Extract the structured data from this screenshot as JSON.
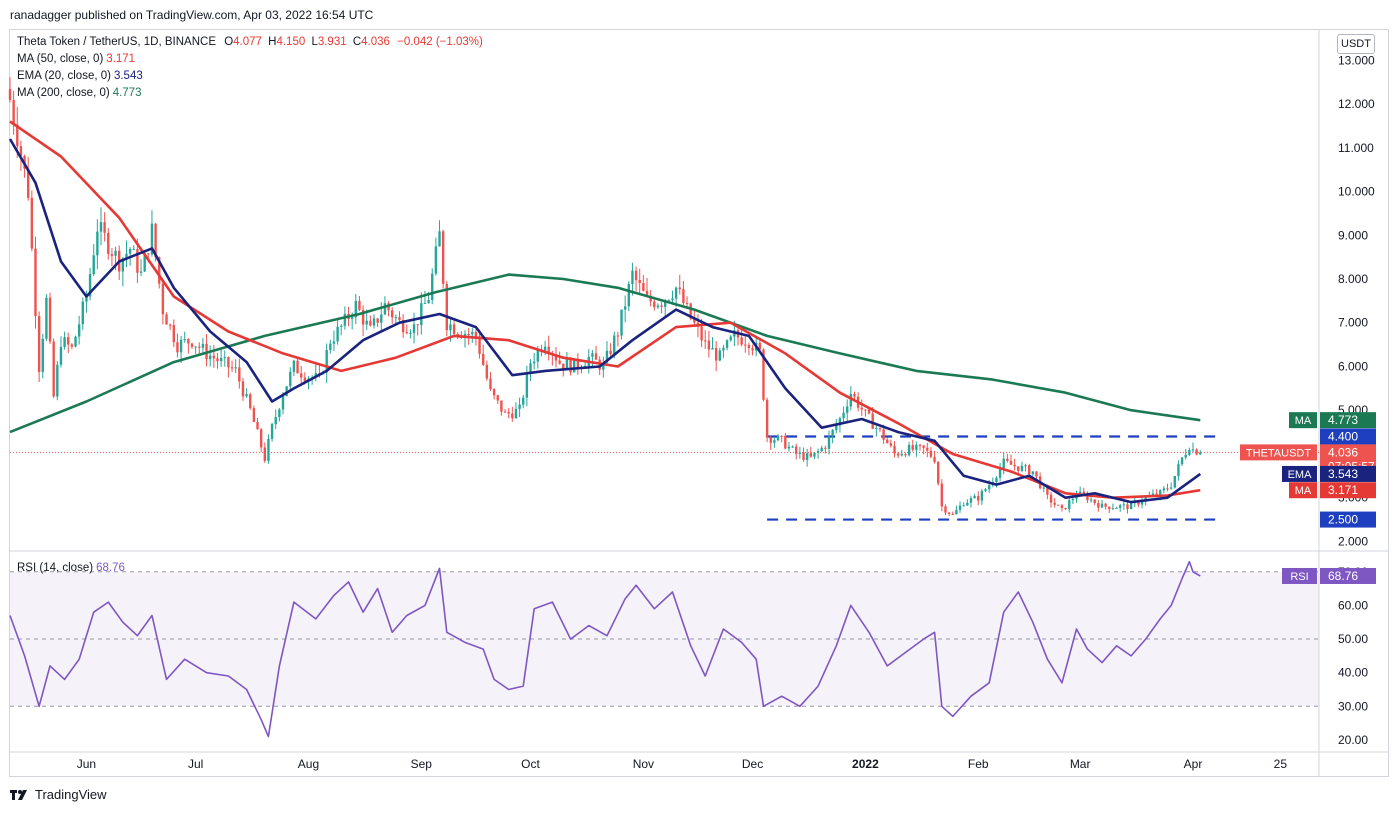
{
  "header": {
    "published": "ranadagger published on TradingView.com, Apr 03, 2022 16:54 UTC"
  },
  "legend": {
    "symbol_line": {
      "title": "Theta Token / TetherUS, 1D, BINANCE",
      "o_label": "O",
      "o": "4.077",
      "h_label": "H",
      "h": "4.150",
      "l_label": "L",
      "l": "3.931",
      "c_label": "C",
      "c": "4.036",
      "change": "−0.042 (−1.03%)"
    },
    "ma50": {
      "label": "MA (50, close, 0)",
      "value": "3.171",
      "color": "#e53935"
    },
    "ema20": {
      "label": "EMA (20, close, 0)",
      "value": "3.543",
      "color": "#1a237e"
    },
    "ma200": {
      "label": "MA (200, close, 0)",
      "value": "4.773",
      "color": "#1b7a54"
    },
    "rsi": {
      "label": "RSI (14, close)",
      "value": "68.76",
      "color": "#7e57c2"
    }
  },
  "unit": "USDT",
  "price_tags": {
    "ma200": {
      "name": "MA",
      "value": "4.773"
    },
    "resistance": {
      "value": "4.400"
    },
    "last": {
      "name": "THETAUSDT",
      "value": "4.036",
      "countdown": "07:05:57"
    },
    "ema20": {
      "name": "EMA",
      "value": "3.543"
    },
    "ma50": {
      "name": "MA",
      "value": "3.171"
    },
    "support": {
      "value": "2.500"
    },
    "rsi": {
      "name": "RSI",
      "value": "68.76"
    }
  },
  "footer": {
    "brand": "TradingView"
  },
  "chart_data": {
    "type": "candlestick",
    "symbol": "THETAUSDT",
    "x_ticks": [
      "Jun",
      "Jul",
      "Aug",
      "Sep",
      "Oct",
      "Nov",
      "Dec",
      "2022",
      "Feb",
      "Mar",
      "Apr",
      "25"
    ],
    "y_ticks": [
      "13.000",
      "12.000",
      "11.000",
      "10.000",
      "9.000",
      "8.000",
      "7.000",
      "6.000",
      "5.000",
      "4.000",
      "3.000",
      "2.000"
    ],
    "ylim": [
      1.85,
      13.35
    ],
    "rsi_ticks": [
      "70.00",
      "60.00",
      "50.00",
      "40.00",
      "30.00",
      "20.00"
    ],
    "rsi_lim": [
      17,
      75
    ],
    "horizontal_levels": [
      {
        "value": 4.4,
        "style": "dashed",
        "color": "#1e3fbf",
        "from": "2021-12-05",
        "to": "2022-04-08"
      },
      {
        "value": 2.5,
        "style": "dashed",
        "color": "#1e3fbf",
        "from": "2021-12-05",
        "to": "2022-04-08"
      }
    ],
    "anchors": {
      "close": [
        [
          "2021-05-11",
          12.1
        ],
        [
          "2021-05-13",
          11.3
        ],
        [
          "2021-05-16",
          10.0
        ],
        [
          "2021-05-19",
          6.0
        ],
        [
          "2021-05-21",
          7.5
        ],
        [
          "2021-05-23",
          5.3
        ],
        [
          "2021-05-25",
          6.6
        ],
        [
          "2021-05-28",
          6.4
        ],
        [
          "2021-06-01",
          7.6
        ],
        [
          "2021-06-04",
          9.2
        ],
        [
          "2021-06-07",
          8.8
        ],
        [
          "2021-06-10",
          8.4
        ],
        [
          "2021-06-13",
          8.7
        ],
        [
          "2021-06-16",
          8.1
        ],
        [
          "2021-06-19",
          9.1
        ],
        [
          "2021-06-22",
          7.3
        ],
        [
          "2021-06-26",
          6.5
        ],
        [
          "2021-06-30",
          6.6
        ],
        [
          "2021-07-04",
          6.3
        ],
        [
          "2021-07-08",
          6.1
        ],
        [
          "2021-07-12",
          5.9
        ],
        [
          "2021-07-16",
          5.0
        ],
        [
          "2021-07-20",
          3.9
        ],
        [
          "2021-07-22",
          4.6
        ],
        [
          "2021-07-25",
          5.4
        ],
        [
          "2021-07-28",
          6.0
        ],
        [
          "2021-07-31",
          5.8
        ],
        [
          "2021-08-04",
          5.7
        ],
        [
          "2021-08-07",
          6.6
        ],
        [
          "2021-08-10",
          6.9
        ],
        [
          "2021-08-14",
          7.4
        ],
        [
          "2021-08-18",
          6.8
        ],
        [
          "2021-08-22",
          7.4
        ],
        [
          "2021-08-26",
          7.0
        ],
        [
          "2021-08-30",
          6.9
        ],
        [
          "2021-09-03",
          7.6
        ],
        [
          "2021-09-06",
          9.0
        ],
        [
          "2021-09-08",
          7.0
        ],
        [
          "2021-09-12",
          6.8
        ],
        [
          "2021-09-16",
          6.7
        ],
        [
          "2021-09-20",
          5.4
        ],
        [
          "2021-09-24",
          4.9
        ],
        [
          "2021-09-28",
          5.0
        ],
        [
          "2021-10-01",
          6.1
        ],
        [
          "2021-10-05",
          6.6
        ],
        [
          "2021-10-09",
          6.1
        ],
        [
          "2021-10-13",
          6.0
        ],
        [
          "2021-10-17",
          6.2
        ],
        [
          "2021-10-21",
          6.0
        ],
        [
          "2021-10-25",
          6.8
        ],
        [
          "2021-10-29",
          8.1
        ],
        [
          "2021-11-02",
          7.5
        ],
        [
          "2021-11-06",
          7.5
        ],
        [
          "2021-11-10",
          7.8
        ],
        [
          "2021-11-14",
          7.1
        ],
        [
          "2021-11-18",
          6.5
        ],
        [
          "2021-11-22",
          6.2
        ],
        [
          "2021-11-26",
          6.7
        ],
        [
          "2021-11-30",
          6.6
        ],
        [
          "2021-12-03",
          6.3
        ],
        [
          "2021-12-05",
          4.4
        ],
        [
          "2021-12-09",
          4.3
        ],
        [
          "2021-12-13",
          4.0
        ],
        [
          "2021-12-17",
          3.9
        ],
        [
          "2021-12-21",
          4.2
        ],
        [
          "2021-12-25",
          4.8
        ],
        [
          "2021-12-28",
          5.4
        ],
        [
          "2022-01-01",
          4.9
        ],
        [
          "2022-01-05",
          4.5
        ],
        [
          "2022-01-09",
          4.0
        ],
        [
          "2022-01-13",
          4.1
        ],
        [
          "2022-01-17",
          4.1
        ],
        [
          "2022-01-20",
          3.9
        ],
        [
          "2022-01-22",
          2.8
        ],
        [
          "2022-01-25",
          2.6
        ],
        [
          "2022-01-28",
          2.9
        ],
        [
          "2022-02-01",
          3.0
        ],
        [
          "2022-02-04",
          3.3
        ],
        [
          "2022-02-08",
          3.8
        ],
        [
          "2022-02-12",
          3.7
        ],
        [
          "2022-02-16",
          3.6
        ],
        [
          "2022-02-20",
          3.0
        ],
        [
          "2022-02-24",
          2.7
        ],
        [
          "2022-02-28",
          3.1
        ],
        [
          "2022-03-03",
          3.0
        ],
        [
          "2022-03-07",
          2.8
        ],
        [
          "2022-03-11",
          2.8
        ],
        [
          "2022-03-15",
          2.8
        ],
        [
          "2022-03-19",
          3.0
        ],
        [
          "2022-03-23",
          3.1
        ],
        [
          "2022-03-26",
          3.3
        ],
        [
          "2022-03-29",
          3.9
        ],
        [
          "2022-03-31",
          4.2
        ],
        [
          "2022-04-01",
          4.1
        ],
        [
          "2022-04-02",
          4.077
        ],
        [
          "2022-04-03",
          4.036
        ]
      ],
      "ema20": [
        [
          "2021-05-11",
          11.2
        ],
        [
          "2021-05-18",
          10.2
        ],
        [
          "2021-05-25",
          8.4
        ],
        [
          "2021-06-01",
          7.6
        ],
        [
          "2021-06-10",
          8.4
        ],
        [
          "2021-06-19",
          8.7
        ],
        [
          "2021-06-25",
          7.8
        ],
        [
          "2021-07-05",
          6.8
        ],
        [
          "2021-07-15",
          6.1
        ],
        [
          "2021-07-22",
          5.2
        ],
        [
          "2021-07-28",
          5.5
        ],
        [
          "2021-08-06",
          5.9
        ],
        [
          "2021-08-16",
          6.6
        ],
        [
          "2021-08-26",
          7.0
        ],
        [
          "2021-09-06",
          7.2
        ],
        [
          "2021-09-16",
          6.9
        ],
        [
          "2021-09-26",
          5.8
        ],
        [
          "2021-10-05",
          5.9
        ],
        [
          "2021-10-20",
          6.0
        ],
        [
          "2021-10-29",
          6.6
        ],
        [
          "2021-11-10",
          7.3
        ],
        [
          "2021-11-20",
          6.9
        ],
        [
          "2021-11-30",
          6.7
        ],
        [
          "2021-12-10",
          5.5
        ],
        [
          "2021-12-20",
          4.6
        ],
        [
          "2021-12-31",
          4.8
        ],
        [
          "2022-01-10",
          4.5
        ],
        [
          "2022-01-20",
          4.3
        ],
        [
          "2022-01-28",
          3.5
        ],
        [
          "2022-02-06",
          3.3
        ],
        [
          "2022-02-15",
          3.5
        ],
        [
          "2022-02-25",
          3.0
        ],
        [
          "2022-03-05",
          3.1
        ],
        [
          "2022-03-15",
          2.9
        ],
        [
          "2022-03-25",
          3.0
        ],
        [
          "2022-04-03",
          3.543
        ]
      ],
      "ma50": [
        [
          "2021-05-11",
          11.6
        ],
        [
          "2021-05-25",
          10.8
        ],
        [
          "2021-06-10",
          9.4
        ],
        [
          "2021-06-25",
          7.6
        ],
        [
          "2021-07-10",
          6.8
        ],
        [
          "2021-07-25",
          6.3
        ],
        [
          "2021-08-10",
          5.9
        ],
        [
          "2021-08-25",
          6.2
        ],
        [
          "2021-09-10",
          6.7
        ],
        [
          "2021-09-25",
          6.6
        ],
        [
          "2021-10-10",
          6.2
        ],
        [
          "2021-10-25",
          6.0
        ],
        [
          "2021-11-10",
          6.9
        ],
        [
          "2021-11-25",
          7.0
        ],
        [
          "2021-12-10",
          6.3
        ],
        [
          "2021-12-25",
          5.4
        ],
        [
          "2022-01-10",
          4.7
        ],
        [
          "2022-01-25",
          4.0
        ],
        [
          "2022-02-10",
          3.6
        ],
        [
          "2022-02-25",
          3.1
        ],
        [
          "2022-03-10",
          3.0
        ],
        [
          "2022-03-25",
          3.05
        ],
        [
          "2022-04-03",
          3.171
        ]
      ],
      "ma200": [
        [
          "2021-05-11",
          4.5
        ],
        [
          "2021-06-01",
          5.2
        ],
        [
          "2021-06-25",
          6.1
        ],
        [
          "2021-07-20",
          6.7
        ],
        [
          "2021-08-15",
          7.2
        ],
        [
          "2021-09-05",
          7.7
        ],
        [
          "2021-09-25",
          8.1
        ],
        [
          "2021-10-10",
          8.0
        ],
        [
          "2021-10-25",
          7.8
        ],
        [
          "2021-11-15",
          7.3
        ],
        [
          "2021-12-05",
          6.7
        ],
        [
          "2021-12-25",
          6.3
        ],
        [
          "2022-01-15",
          5.9
        ],
        [
          "2022-02-05",
          5.7
        ],
        [
          "2022-02-25",
          5.4
        ],
        [
          "2022-03-15",
          5.0
        ],
        [
          "2022-04-03",
          4.773
        ]
      ],
      "rsi": [
        [
          "2021-05-11",
          57
        ],
        [
          "2021-05-15",
          45
        ],
        [
          "2021-05-19",
          30
        ],
        [
          "2021-05-22",
          42
        ],
        [
          "2021-05-26",
          38
        ],
        [
          "2021-05-30",
          44
        ],
        [
          "2021-06-03",
          58
        ],
        [
          "2021-06-07",
          61
        ],
        [
          "2021-06-11",
          55
        ],
        [
          "2021-06-15",
          51
        ],
        [
          "2021-06-19",
          57
        ],
        [
          "2021-06-23",
          38
        ],
        [
          "2021-06-28",
          44
        ],
        [
          "2021-07-04",
          40
        ],
        [
          "2021-07-10",
          39
        ],
        [
          "2021-07-15",
          35
        ],
        [
          "2021-07-19",
          26
        ],
        [
          "2021-07-21",
          21
        ],
        [
          "2021-07-24",
          42
        ],
        [
          "2021-07-28",
          61
        ],
        [
          "2021-08-03",
          56
        ],
        [
          "2021-08-08",
          63
        ],
        [
          "2021-08-12",
          67
        ],
        [
          "2021-08-16",
          58
        ],
        [
          "2021-08-20",
          65
        ],
        [
          "2021-08-24",
          52
        ],
        [
          "2021-08-28",
          57
        ],
        [
          "2021-09-02",
          60
        ],
        [
          "2021-09-06",
          71
        ],
        [
          "2021-09-08",
          52
        ],
        [
          "2021-09-13",
          49
        ],
        [
          "2021-09-18",
          47
        ],
        [
          "2021-09-21",
          38
        ],
        [
          "2021-09-25",
          35
        ],
        [
          "2021-09-29",
          36
        ],
        [
          "2021-10-02",
          59
        ],
        [
          "2021-10-07",
          61
        ],
        [
          "2021-10-12",
          50
        ],
        [
          "2021-10-17",
          54
        ],
        [
          "2021-10-22",
          51
        ],
        [
          "2021-10-27",
          62
        ],
        [
          "2021-10-30",
          66
        ],
        [
          "2021-11-04",
          59
        ],
        [
          "2021-11-09",
          64
        ],
        [
          "2021-11-14",
          48
        ],
        [
          "2021-11-18",
          39
        ],
        [
          "2021-11-23",
          53
        ],
        [
          "2021-11-28",
          49
        ],
        [
          "2021-12-02",
          44
        ],
        [
          "2021-12-04",
          30
        ],
        [
          "2021-12-09",
          33
        ],
        [
          "2021-12-14",
          30
        ],
        [
          "2021-12-19",
          36
        ],
        [
          "2021-12-24",
          48
        ],
        [
          "2021-12-28",
          60
        ],
        [
          "2022-01-02",
          52
        ],
        [
          "2022-01-07",
          42
        ],
        [
          "2022-01-12",
          46
        ],
        [
          "2022-01-17",
          50
        ],
        [
          "2022-01-20",
          52
        ],
        [
          "2022-01-22",
          30
        ],
        [
          "2022-01-25",
          27
        ],
        [
          "2022-01-30",
          33
        ],
        [
          "2022-02-04",
          37
        ],
        [
          "2022-02-08",
          58
        ],
        [
          "2022-02-12",
          64
        ],
        [
          "2022-02-16",
          55
        ],
        [
          "2022-02-20",
          44
        ],
        [
          "2022-02-24",
          37
        ],
        [
          "2022-02-28",
          53
        ],
        [
          "2022-03-03",
          47
        ],
        [
          "2022-03-07",
          43
        ],
        [
          "2022-03-11",
          48
        ],
        [
          "2022-03-15",
          45
        ],
        [
          "2022-03-19",
          50
        ],
        [
          "2022-03-23",
          56
        ],
        [
          "2022-03-26",
          60
        ],
        [
          "2022-03-29",
          68
        ],
        [
          "2022-03-31",
          73
        ],
        [
          "2022-04-01",
          70
        ],
        [
          "2022-04-03",
          68.76
        ]
      ]
    }
  }
}
